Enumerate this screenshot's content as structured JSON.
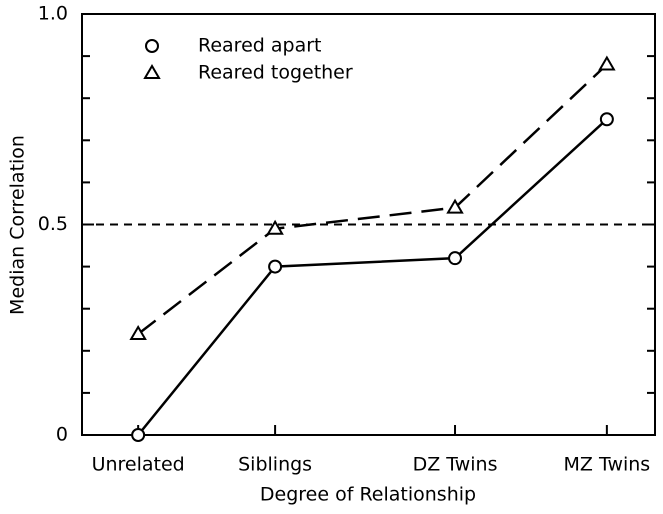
{
  "chart_data": {
    "type": "line",
    "x_label": "Degree of Relationship",
    "y_label": "Median Correlation",
    "categories": [
      "Unrelated",
      "Siblings",
      "DZ Twins",
      "MZ Twins"
    ],
    "series": [
      {
        "name": "Reared apart",
        "color": "#000000",
        "marker": "circle",
        "dash": "solid",
        "values": [
          0,
          0.4,
          0.42,
          0.75
        ]
      },
      {
        "name": "Reared together",
        "color": "#000000",
        "marker": "triangle",
        "dash": "dashed",
        "values": [
          0.24,
          0.49,
          0.54,
          0.88
        ]
      }
    ],
    "ylim": [
      0,
      1.0
    ],
    "yticks": [
      0,
      0.5,
      {
        "value": 1.0,
        "label": "1.0"
      }
    ],
    "minor_yticks": [
      0.1,
      0.2,
      0.3,
      0.4,
      0.6,
      0.7,
      0.8,
      0.9
    ],
    "reference_line": 0.5,
    "legend": "upper-left",
    "grid": false
  }
}
